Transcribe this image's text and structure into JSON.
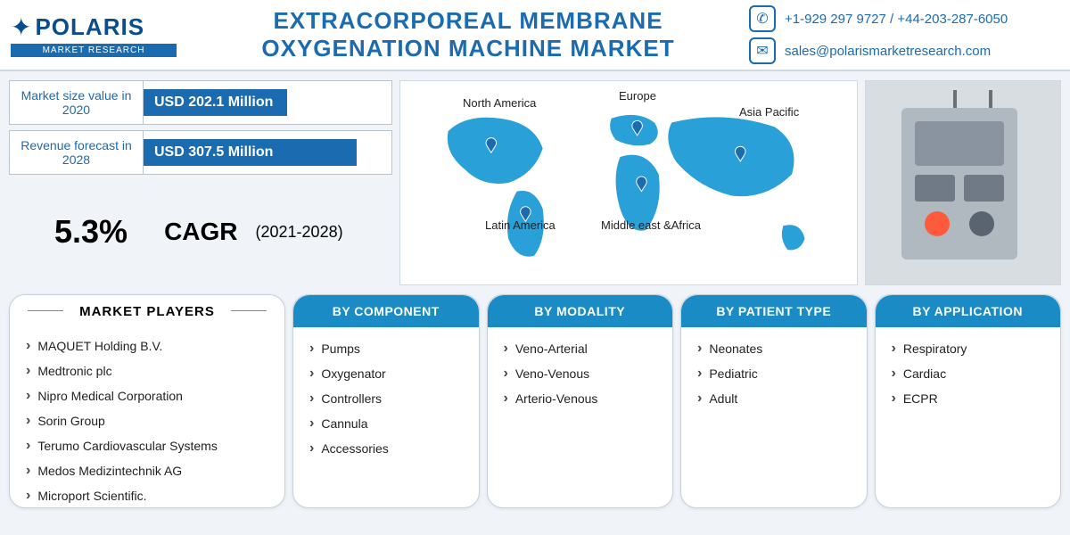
{
  "logo": {
    "name": "POLARIS",
    "sub": "MARKET RESEARCH"
  },
  "title": "EXTRACORPOREAL MEMBRANE OXYGENATION MACHINE MARKET",
  "contact": {
    "phone": "+1-929 297 9727   /  +44-203-287-6050",
    "email": "sales@polarismarketresearch.com"
  },
  "stats": {
    "size2020_label": "Market size value in 2020",
    "size2020_value": "USD 202.1 Million",
    "size2020_barpct": 58,
    "forecast2028_label": "Revenue forecast in 2028",
    "forecast2028_value": "USD 307.5 Million",
    "forecast2028_barpct": 86,
    "cagr_value": "5.3%",
    "cagr_label": "CAGR",
    "cagr_period": "(2021-2028)"
  },
  "regions": {
    "na": "North America",
    "la": "Latin America",
    "eu": "Europe",
    "mea": "Middle east &Africa",
    "ap": "Asia Pacific"
  },
  "players_title": "MARKET PLAYERS",
  "players": [
    "MAQUET Holding B.V.",
    "Medtronic plc",
    "Nipro Medical Corporation",
    "Sorin Group",
    "Terumo Cardiovascular Systems",
    "Medos Medizintechnik AG",
    "Microport Scientific."
  ],
  "segments": {
    "component": {
      "title": "BY COMPONENT",
      "items": [
        "Pumps",
        "Oxygenator",
        "Controllers",
        "Cannula",
        "Accessories"
      ]
    },
    "modality": {
      "title": "BY MODALITY",
      "items": [
        "Veno-Arterial",
        "Veno-Venous",
        "Arterio-Venous"
      ]
    },
    "patient": {
      "title": "BY PATIENT TYPE",
      "items": [
        "Neonates",
        "Pediatric",
        "Adult"
      ]
    },
    "application": {
      "title": "BY APPLICATION",
      "items": [
        "Respiratory",
        "Cardiac",
        "ECPR"
      ]
    }
  },
  "colors": {
    "brand_blue": "#1a6bb0",
    "seg_header": "#1a8bc4",
    "map_land": "#2aa0d8",
    "bg": "#f0f4f8"
  }
}
